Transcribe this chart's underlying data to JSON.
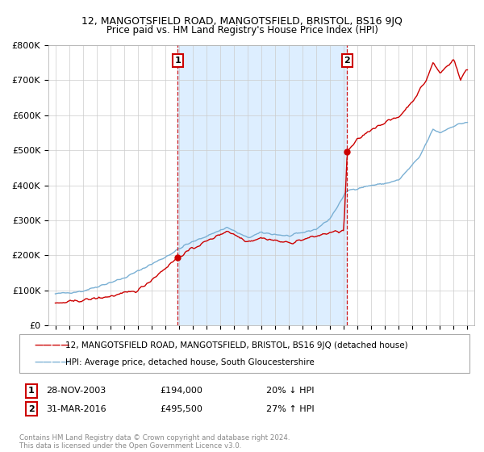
{
  "title": "12, MANGOTSFIELD ROAD, MANGOTSFIELD, BRISTOL, BS16 9JQ",
  "subtitle": "Price paid vs. HM Land Registry's House Price Index (HPI)",
  "ylim": [
    0,
    800000
  ],
  "yticks": [
    0,
    100000,
    200000,
    300000,
    400000,
    500000,
    600000,
    700000,
    800000
  ],
  "ytick_labels": [
    "£0",
    "£100K",
    "£200K",
    "£300K",
    "£400K",
    "£500K",
    "£600K",
    "£700K",
    "£800K"
  ],
  "xlim_start": 1994.5,
  "xlim_end": 2025.5,
  "red_line_color": "#cc0000",
  "blue_line_color": "#7ab0d4",
  "shade_color": "#ddeeff",
  "vline_color": "#cc0000",
  "marker_box_color": "#cc0000",
  "purchase1_x": 2003.91,
  "purchase1_y": 194000,
  "purchase2_x": 2016.25,
  "purchase2_y": 495500,
  "legend_line1": "12, MANGOTSFIELD ROAD, MANGOTSFIELD, BRISTOL, BS16 9JQ (detached house)",
  "legend_line2": "HPI: Average price, detached house, South Gloucestershire",
  "purchase1_date": "28-NOV-2003",
  "purchase1_price": "£194,000",
  "purchase1_hpi": "20% ↓ HPI",
  "purchase2_date": "31-MAR-2016",
  "purchase2_price": "£495,500",
  "purchase2_hpi": "27% ↑ HPI",
  "footnote": "Contains HM Land Registry data © Crown copyright and database right 2024.\nThis data is licensed under the Open Government Licence v3.0.",
  "background_color": "#ffffff",
  "grid_color": "#cccccc",
  "title_fontsize": 9,
  "subtitle_fontsize": 9
}
